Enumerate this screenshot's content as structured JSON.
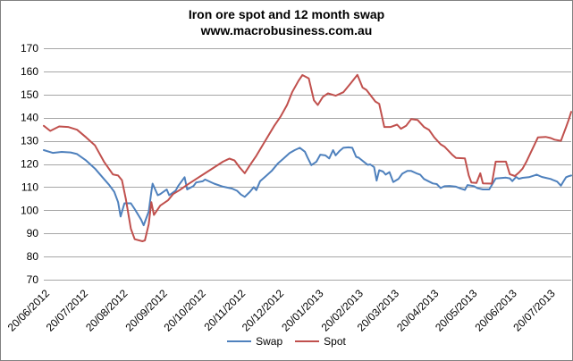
{
  "title": {
    "line1": "Iron ore spot and 12 month swap",
    "line2": "www.macrobusiness.com.au"
  },
  "colors": {
    "swap": "#4F81BD",
    "spot": "#C0504D",
    "gridline": "#A6A6A6",
    "frame_border": "#808080",
    "text": "#000000"
  },
  "chart_data": {
    "type": "line",
    "title": "Iron ore spot and 12 month swap",
    "subtitle": "www.macrobusiness.com.au",
    "grid": "horizontal-on",
    "legend_position": "bottom-center",
    "ylim": [
      70,
      170
    ],
    "yticks": [
      70,
      80,
      90,
      100,
      110,
      120,
      130,
      140,
      150,
      160,
      170
    ],
    "x_axis": {
      "unit": "days-since-first-point",
      "t_range": [
        0,
        412
      ],
      "tick_t": [
        0,
        30,
        61,
        92,
        122,
        153,
        183,
        214,
        245,
        273,
        304,
        334,
        365,
        395
      ],
      "tick_labels": [
        "20/06/2012",
        "20/07/2012",
        "20/08/2012",
        "20/09/2012",
        "20/10/2012",
        "20/11/2012",
        "20/12/2012",
        "20/01/2013",
        "20/02/2013",
        "20/03/2013",
        "20/04/2013",
        "20/05/2013",
        "20/06/2013",
        "20/07/2013"
      ]
    },
    "series": [
      {
        "name": "Swap",
        "color": "#4F81BD",
        "points": [
          [
            0,
            126.0
          ],
          [
            7,
            124.8
          ],
          [
            14,
            125.2
          ],
          [
            21,
            125.0
          ],
          [
            26,
            124.3
          ],
          [
            33,
            121.5
          ],
          [
            40,
            118.0
          ],
          [
            47,
            113.5
          ],
          [
            51,
            111.0
          ],
          [
            55,
            108.0
          ],
          [
            58,
            103.5
          ],
          [
            60,
            97.3
          ],
          [
            63,
            103.0
          ],
          [
            68,
            103.0
          ],
          [
            71,
            100.5
          ],
          [
            76,
            96.0
          ],
          [
            78,
            93.5
          ],
          [
            82,
            99.5
          ],
          [
            84,
            108.0
          ],
          [
            85,
            111.5
          ],
          [
            89,
            106.5
          ],
          [
            91,
            107.0
          ],
          [
            96,
            109.0
          ],
          [
            98,
            106.5
          ],
          [
            103,
            108.5
          ],
          [
            105,
            110.5
          ],
          [
            110,
            114.3
          ],
          [
            112,
            109.0
          ],
          [
            117,
            110.5
          ],
          [
            119,
            112.0
          ],
          [
            124,
            112.5
          ],
          [
            126,
            113.3
          ],
          [
            133,
            111.5
          ],
          [
            140,
            110.2
          ],
          [
            147,
            109.4
          ],
          [
            151,
            108.4
          ],
          [
            154,
            106.8
          ],
          [
            157,
            105.8
          ],
          [
            161,
            108.0
          ],
          [
            164,
            110.0
          ],
          [
            166,
            108.7
          ],
          [
            169,
            112.6
          ],
          [
            173,
            114.5
          ],
          [
            178,
            117.0
          ],
          [
            183,
            120.3
          ],
          [
            187,
            122.2
          ],
          [
            192,
            124.7
          ],
          [
            196,
            126.0
          ],
          [
            200,
            127.0
          ],
          [
            204,
            125.3
          ],
          [
            206,
            122.8
          ],
          [
            209,
            119.5
          ],
          [
            213,
            121.0
          ],
          [
            216,
            124.0
          ],
          [
            220,
            123.7
          ],
          [
            223,
            122.4
          ],
          [
            226,
            126.0
          ],
          [
            228,
            123.7
          ],
          [
            231,
            125.6
          ],
          [
            234,
            127.0
          ],
          [
            238,
            127.2
          ],
          [
            241,
            127.0
          ],
          [
            244,
            123.1
          ],
          [
            246,
            122.7
          ],
          [
            251,
            120.5
          ],
          [
            253,
            119.6
          ],
          [
            255,
            119.8
          ],
          [
            258,
            118.6
          ],
          [
            260,
            112.8
          ],
          [
            262,
            117.3
          ],
          [
            265,
            116.7
          ],
          [
            267,
            115.4
          ],
          [
            270,
            116.5
          ],
          [
            273,
            112.2
          ],
          [
            277,
            113.5
          ],
          [
            280,
            115.8
          ],
          [
            284,
            117.0
          ],
          [
            287,
            117.0
          ],
          [
            291,
            116.0
          ],
          [
            294,
            115.4
          ],
          [
            297,
            113.5
          ],
          [
            301,
            112.4
          ],
          [
            304,
            111.6
          ],
          [
            307,
            111.3
          ],
          [
            310,
            109.6
          ],
          [
            313,
            110.4
          ],
          [
            317,
            110.5
          ],
          [
            322,
            110.2
          ],
          [
            326,
            109.3
          ],
          [
            329,
            108.8
          ],
          [
            331,
            110.9
          ],
          [
            334,
            110.6
          ],
          [
            336,
            110.4
          ],
          [
            339,
            109.5
          ],
          [
            343,
            109.0
          ],
          [
            348,
            109.0
          ],
          [
            353,
            113.7
          ],
          [
            357,
            113.9
          ],
          [
            361,
            114.1
          ],
          [
            364,
            113.8
          ],
          [
            366,
            112.6
          ],
          [
            369,
            114.4
          ],
          [
            371,
            113.6
          ],
          [
            374,
            114.0
          ],
          [
            379,
            114.3
          ],
          [
            383,
            115.0
          ],
          [
            385,
            115.4
          ],
          [
            389,
            114.4
          ],
          [
            392,
            114.0
          ],
          [
            396,
            113.5
          ],
          [
            398,
            113.0
          ],
          [
            401,
            112.4
          ],
          [
            404,
            110.6
          ],
          [
            406,
            112.5
          ],
          [
            408,
            114.3
          ],
          [
            410,
            114.7
          ],
          [
            412,
            115.0
          ]
        ]
      },
      {
        "name": "Spot",
        "color": "#C0504D",
        "points": [
          [
            0,
            136.5
          ],
          [
            5,
            134.3
          ],
          [
            12,
            136.2
          ],
          [
            19,
            136.0
          ],
          [
            26,
            134.8
          ],
          [
            33,
            131.5
          ],
          [
            40,
            128.0
          ],
          [
            47,
            121.0
          ],
          [
            54,
            115.5
          ],
          [
            58,
            115.0
          ],
          [
            61,
            113.0
          ],
          [
            64,
            105.0
          ],
          [
            68,
            92.0
          ],
          [
            71,
            87.5
          ],
          [
            77,
            86.6
          ],
          [
            79,
            87.0
          ],
          [
            82,
            94.0
          ],
          [
            84,
            103.5
          ],
          [
            86,
            98.0
          ],
          [
            91,
            102.0
          ],
          [
            97,
            104.3
          ],
          [
            101,
            107.0
          ],
          [
            106,
            108.7
          ],
          [
            112,
            111.0
          ],
          [
            119,
            113.5
          ],
          [
            126,
            116.0
          ],
          [
            133,
            118.5
          ],
          [
            140,
            121.0
          ],
          [
            145,
            122.3
          ],
          [
            149,
            121.5
          ],
          [
            153,
            118.5
          ],
          [
            157,
            116.0
          ],
          [
            161,
            119.5
          ],
          [
            166,
            123.5
          ],
          [
            173,
            130.0
          ],
          [
            180,
            136.5
          ],
          [
            185,
            140.5
          ],
          [
            190,
            145.5
          ],
          [
            194,
            151.0
          ],
          [
            199,
            156.0
          ],
          [
            202,
            158.4
          ],
          [
            207,
            157.0
          ],
          [
            211,
            147.5
          ],
          [
            214,
            145.5
          ],
          [
            218,
            149.0
          ],
          [
            222,
            150.5
          ],
          [
            228,
            149.5
          ],
          [
            234,
            151.0
          ],
          [
            240,
            155.0
          ],
          [
            245,
            158.5
          ],
          [
            249,
            153.0
          ],
          [
            252,
            152.0
          ],
          [
            259,
            147.0
          ],
          [
            262,
            146.0
          ],
          [
            266,
            136.0
          ],
          [
            271,
            136.0
          ],
          [
            276,
            137.0
          ],
          [
            279,
            135.2
          ],
          [
            283,
            136.5
          ],
          [
            287,
            139.4
          ],
          [
            292,
            139.0
          ],
          [
            297,
            136.0
          ],
          [
            301,
            134.7
          ],
          [
            305,
            131.5
          ],
          [
            310,
            128.5
          ],
          [
            313,
            127.5
          ],
          [
            319,
            124.0
          ],
          [
            322,
            122.6
          ],
          [
            329,
            122.4
          ],
          [
            332,
            115.0
          ],
          [
            334,
            112.0
          ],
          [
            338,
            111.8
          ],
          [
            341,
            116.0
          ],
          [
            343,
            111.6
          ],
          [
            350,
            111.5
          ],
          [
            353,
            121.0
          ],
          [
            361,
            121.0
          ],
          [
            364,
            115.6
          ],
          [
            368,
            114.8
          ],
          [
            371,
            116.2
          ],
          [
            374,
            118.0
          ],
          [
            377,
            121.0
          ],
          [
            380,
            124.5
          ],
          [
            383,
            128.0
          ],
          [
            386,
            131.5
          ],
          [
            392,
            131.7
          ],
          [
            396,
            131.2
          ],
          [
            399,
            130.5
          ],
          [
            404,
            130.0
          ],
          [
            406,
            133.0
          ],
          [
            408,
            136.0
          ],
          [
            410,
            139.0
          ],
          [
            412,
            142.5
          ]
        ]
      }
    ]
  }
}
